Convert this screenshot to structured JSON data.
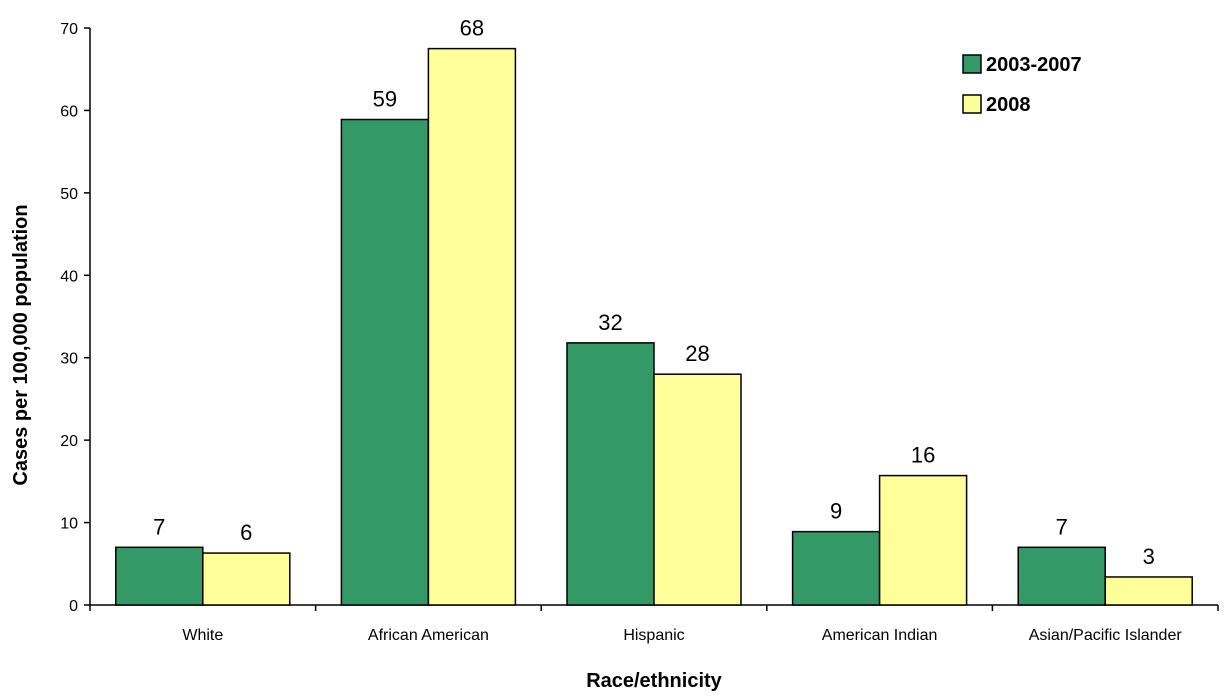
{
  "chart_data": {
    "type": "bar",
    "xlabel": "Race/ethnicity",
    "ylabel": "Cases per 100,000 population",
    "ylim": [
      0,
      70
    ],
    "yticks": [
      0,
      10,
      20,
      30,
      40,
      50,
      60,
      70
    ],
    "grid": false,
    "legend_position": "top-right",
    "categories": [
      "White",
      "African American",
      "Hispanic",
      "American Indian",
      "Asian/Pacific Islander"
    ],
    "series": [
      {
        "name": "2003-2007",
        "color": "#339966",
        "values": [
          7.0,
          58.9,
          31.8,
          8.9,
          7.0
        ],
        "labels": [
          "7",
          "59",
          "32",
          "9",
          "7"
        ]
      },
      {
        "name": "2008",
        "color": "#FFFF99",
        "values": [
          6.3,
          67.5,
          28.0,
          15.7,
          3.4
        ],
        "labels": [
          "6",
          "68",
          "28",
          "16",
          "3"
        ]
      }
    ]
  }
}
